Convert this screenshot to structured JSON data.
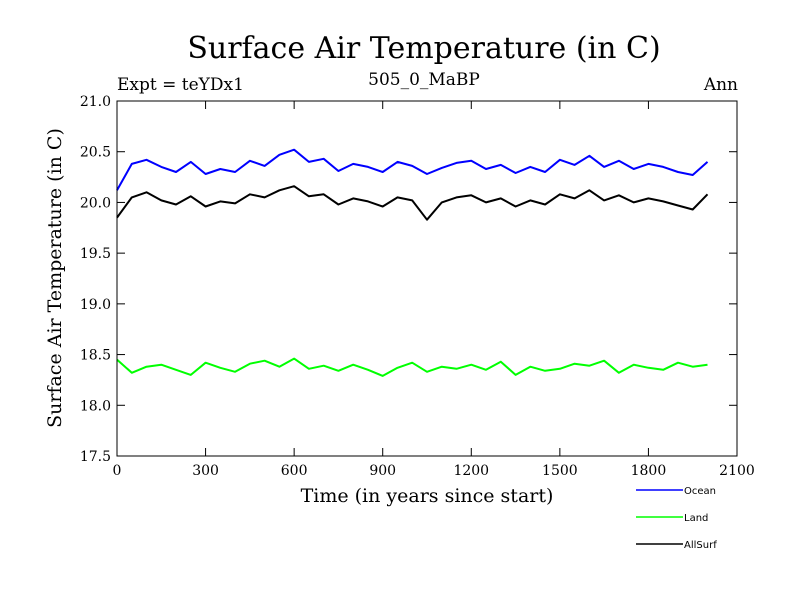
{
  "chart_data": {
    "type": "line",
    "title": "Surface Air Temperature (in C)",
    "subtitle_left": "Expt = teYDx1",
    "subtitle_center": "505_0_MaBP",
    "subtitle_right": "Ann",
    "xlabel": "Time (in years since start)",
    "ylabel": "Surface Air Temperature (in C)",
    "xlim": [
      0,
      2100
    ],
    "ylim": [
      17.5,
      21.0
    ],
    "xticks": [
      0,
      300,
      600,
      900,
      1200,
      1500,
      1800,
      2100
    ],
    "xtick_labels": [
      "0",
      "300",
      "600",
      "900",
      "1200",
      "1500",
      "1800",
      "2100"
    ],
    "yticks": [
      17.5,
      18.0,
      18.5,
      19.0,
      19.5,
      20.0,
      20.5,
      21.0
    ],
    "ytick_labels": [
      "17.5",
      "18.0",
      "18.5",
      "19.0",
      "19.5",
      "20.0",
      "20.5",
      "21.0"
    ],
    "x": [
      0,
      50,
      100,
      150,
      200,
      250,
      300,
      350,
      400,
      450,
      500,
      550,
      600,
      650,
      700,
      750,
      800,
      850,
      900,
      950,
      1000,
      1050,
      1100,
      1150,
      1200,
      1250,
      1300,
      1350,
      1400,
      1450,
      1500,
      1550,
      1600,
      1650,
      1700,
      1750,
      1800,
      1850,
      1900,
      1950,
      2000
    ],
    "series": [
      {
        "name": "Ocean",
        "color": "#0000ff",
        "values": [
          20.12,
          20.38,
          20.42,
          20.35,
          20.3,
          20.4,
          20.28,
          20.33,
          20.3,
          20.41,
          20.36,
          20.47,
          20.52,
          20.4,
          20.43,
          20.31,
          20.38,
          20.35,
          20.3,
          20.4,
          20.36,
          20.28,
          20.34,
          20.39,
          20.41,
          20.33,
          20.37,
          20.29,
          20.35,
          20.3,
          20.42,
          20.37,
          20.46,
          20.35,
          20.41,
          20.33,
          20.38,
          20.35,
          20.3,
          20.27,
          20.4
        ]
      },
      {
        "name": "Land",
        "color": "#00ff00",
        "values": [
          18.45,
          18.32,
          18.38,
          18.4,
          18.35,
          18.3,
          18.42,
          18.37,
          18.33,
          18.41,
          18.44,
          18.38,
          18.46,
          18.36,
          18.39,
          18.34,
          18.4,
          18.35,
          18.29,
          18.37,
          18.42,
          18.33,
          18.38,
          18.36,
          18.4,
          18.35,
          18.43,
          18.3,
          18.38,
          18.34,
          18.36,
          18.41,
          18.39,
          18.44,
          18.32,
          18.4,
          18.37,
          18.35,
          18.42,
          18.38,
          18.4
        ]
      },
      {
        "name": "AllSurf",
        "color": "#000000",
        "values": [
          19.85,
          20.05,
          20.1,
          20.02,
          19.98,
          20.06,
          19.96,
          20.01,
          19.99,
          20.08,
          20.05,
          20.12,
          20.16,
          20.06,
          20.08,
          19.98,
          20.04,
          20.01,
          19.96,
          20.05,
          20.02,
          19.83,
          20.0,
          20.05,
          20.07,
          20.0,
          20.04,
          19.96,
          20.02,
          19.98,
          20.08,
          20.04,
          20.12,
          20.02,
          20.07,
          20.0,
          20.04,
          20.01,
          19.97,
          19.93,
          20.08
        ]
      }
    ],
    "legend_position": "bottom-right"
  }
}
